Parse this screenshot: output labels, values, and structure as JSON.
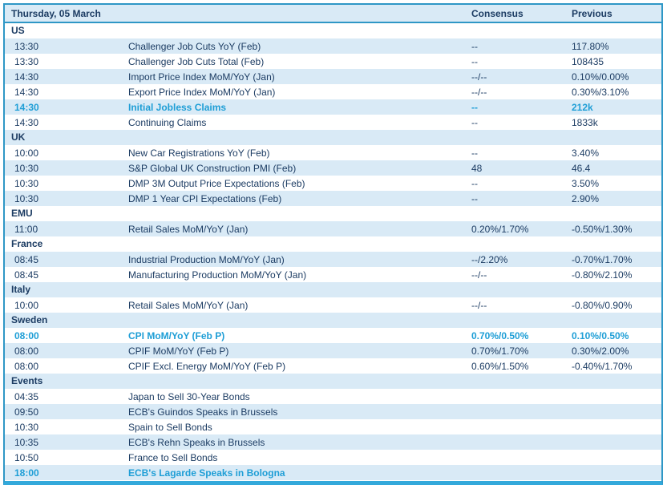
{
  "header": {
    "date_label": "Thursday, 05 March",
    "consensus_label": "Consensus",
    "previous_label": "Previous"
  },
  "colors": {
    "border_blue": "#2e97c6",
    "bottom_border_blue": "#33a9db",
    "stripe_light_blue": "#d9eaf6",
    "text_navy": "#1c3c63",
    "highlight_cyan": "#1e9ed6"
  },
  "sections": [
    {
      "name": "US",
      "rows": [
        {
          "time": "13:30",
          "event": "Challenger Job Cuts YoY (Feb)",
          "consensus": "--",
          "previous": "117.80%",
          "highlight": false
        },
        {
          "time": "13:30",
          "event": "Challenger Job Cuts Total (Feb)",
          "consensus": "--",
          "previous": "108435",
          "highlight": false
        },
        {
          "time": "14:30",
          "event": "Import Price Index MoM/YoY (Jan)",
          "consensus": "--/--",
          "previous": "0.10%/0.00%",
          "highlight": false
        },
        {
          "time": "14:30",
          "event": "Export Price Index MoM/YoY (Jan)",
          "consensus": "--/--",
          "previous": "0.30%/3.10%",
          "highlight": false
        },
        {
          "time": "14:30",
          "event": "Initial Jobless Claims",
          "consensus": "--",
          "previous": "212k",
          "highlight": true
        },
        {
          "time": "14:30",
          "event": "Continuing Claims",
          "consensus": "--",
          "previous": "1833k",
          "highlight": false
        }
      ]
    },
    {
      "name": "UK",
      "rows": [
        {
          "time": "10:00",
          "event": "New Car Registrations YoY (Feb)",
          "consensus": "--",
          "previous": "3.40%",
          "highlight": false
        },
        {
          "time": "10:30",
          "event": "S&P Global UK Construction PMI (Feb)",
          "consensus": "48",
          "previous": "46.4",
          "highlight": false
        },
        {
          "time": "10:30",
          "event": "DMP 3M Output Price Expectations (Feb)",
          "consensus": "--",
          "previous": "3.50%",
          "highlight": false
        },
        {
          "time": "10:30",
          "event": "DMP 1 Year CPI Expectations (Feb)",
          "consensus": "--",
          "previous": "2.90%",
          "highlight": false
        }
      ]
    },
    {
      "name": "EMU",
      "rows": [
        {
          "time": "11:00",
          "event": "Retail Sales MoM/YoY (Jan)",
          "consensus": "0.20%/1.70%",
          "previous": "-0.50%/1.30%",
          "highlight": false
        }
      ]
    },
    {
      "name": "France",
      "rows": [
        {
          "time": "08:45",
          "event": "Industrial Production MoM/YoY (Jan)",
          "consensus": "--/2.20%",
          "previous": "-0.70%/1.70%",
          "highlight": false
        },
        {
          "time": "08:45",
          "event": "Manufacturing Production MoM/YoY (Jan)",
          "consensus": "--/--",
          "previous": "-0.80%/2.10%",
          "highlight": false
        }
      ]
    },
    {
      "name": "Italy",
      "rows": [
        {
          "time": "10:00",
          "event": "Retail Sales MoM/YoY (Jan)",
          "consensus": "--/--",
          "previous": "-0.80%/0.90%",
          "highlight": false
        }
      ]
    },
    {
      "name": "Sweden",
      "rows": [
        {
          "time": "08:00",
          "event": "CPI MoM/YoY (Feb P)",
          "consensus": "0.70%/0.50%",
          "previous": "0.10%/0.50%",
          "highlight": true
        },
        {
          "time": "08:00",
          "event": "CPIF MoM/YoY (Feb P)",
          "consensus": "0.70%/1.70%",
          "previous": "0.30%/2.00%",
          "highlight": false
        },
        {
          "time": "08:00",
          "event": "CPIF Excl. Energy MoM/YoY (Feb P)",
          "consensus": "0.60%/1.50%",
          "previous": "-0.40%/1.70%",
          "highlight": false
        }
      ]
    },
    {
      "name": "Events",
      "rows": [
        {
          "time": "04:35",
          "event": "Japan to Sell 30-Year Bonds",
          "consensus": "",
          "previous": "",
          "highlight": false
        },
        {
          "time": "09:50",
          "event": "ECB's Guindos Speaks in Brussels",
          "consensus": "",
          "previous": "",
          "highlight": false
        },
        {
          "time": "10:30",
          "event": "Spain to Sell Bonds",
          "consensus": "",
          "previous": "",
          "highlight": false
        },
        {
          "time": "10:35",
          "event": "ECB's Rehn Speaks in Brussels",
          "consensus": "",
          "previous": "",
          "highlight": false
        },
        {
          "time": "10:50",
          "event": "France to Sell Bonds",
          "consensus": "",
          "previous": "",
          "highlight": false
        },
        {
          "time": "18:00",
          "event": "ECB's Lagarde Speaks in Bologna",
          "consensus": "",
          "previous": "",
          "highlight": true
        }
      ]
    }
  ]
}
